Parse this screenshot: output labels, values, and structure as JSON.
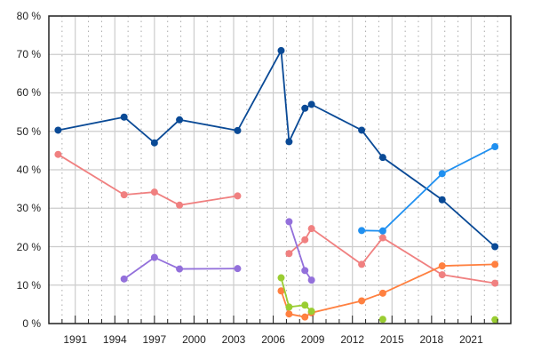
{
  "chart_data": {
    "type": "line",
    "title": "",
    "xlabel": "",
    "ylabel": "",
    "xlim": [
      1989,
      2024
    ],
    "ylim": [
      0,
      80
    ],
    "x_ticks": [
      1991,
      1994,
      1997,
      2000,
      2003,
      2006,
      2009,
      2012,
      2015,
      2018,
      2021
    ],
    "x_tick_labels": [
      "1991",
      "1994",
      "1997",
      "2000",
      "2003",
      "2006",
      "2009",
      "2012",
      "2015",
      "2018",
      "2021"
    ],
    "y_ticks": [
      0,
      10,
      20,
      30,
      40,
      50,
      60,
      70,
      80
    ],
    "y_tick_labels": [
      "0 %",
      "10 %",
      "20 %",
      "30 %",
      "40 %",
      "50 %",
      "60 %",
      "70 %",
      "80 %"
    ],
    "grid": true,
    "legend": "none",
    "series": [
      {
        "color": "#0a4a96",
        "segments": [
          [
            [
              1989.7,
              50.3
            ],
            [
              1994.7,
              53.7
            ],
            [
              1997.0,
              47.0
            ],
            [
              1998.9,
              53.0
            ],
            [
              2003.3,
              50.2
            ],
            [
              2006.6,
              71.0
            ],
            [
              2007.2,
              47.3
            ],
            [
              2008.4,
              56.0
            ],
            [
              2008.9,
              57.0
            ],
            [
              2012.7,
              50.3
            ],
            [
              2014.3,
              43.2
            ],
            [
              2018.8,
              32.2
            ],
            [
              2022.8,
              20.0
            ]
          ]
        ]
      },
      {
        "color": "#f08080",
        "segments": [
          [
            [
              1989.7,
              44.0
            ],
            [
              1994.7,
              33.5
            ],
            [
              1997.0,
              34.2
            ],
            [
              1998.9,
              30.8
            ],
            [
              2003.3,
              33.2
            ]
          ],
          [
            [
              2007.2,
              18.2
            ],
            [
              2008.4,
              21.8
            ],
            [
              2008.9,
              24.7
            ],
            [
              2012.7,
              15.4
            ],
            [
              2014.3,
              22.3
            ],
            [
              2018.8,
              12.7
            ],
            [
              2022.8,
              10.5
            ]
          ]
        ]
      },
      {
        "color": "#9370db",
        "segments": [
          [
            [
              1994.7,
              11.6
            ],
            [
              1997.0,
              17.2
            ],
            [
              1998.9,
              14.2
            ],
            [
              2003.3,
              14.3
            ]
          ],
          [
            [
              2007.2,
              26.5
            ],
            [
              2008.4,
              13.8
            ],
            [
              2008.9,
              11.3
            ]
          ]
        ]
      },
      {
        "color": "#2090f0",
        "segments": [
          [
            [
              2012.7,
              24.2
            ],
            [
              2014.3,
              24.1
            ],
            [
              2018.8,
              39.0
            ],
            [
              2022.8,
              46.0
            ]
          ]
        ]
      },
      {
        "color": "#ff8040",
        "segments": [
          [
            [
              2006.6,
              8.5
            ],
            [
              2007.2,
              2.5
            ],
            [
              2008.4,
              1.7
            ],
            [
              2008.9,
              2.8
            ],
            [
              2012.7,
              5.9
            ],
            [
              2014.3,
              7.9
            ],
            [
              2018.8,
              15.0
            ],
            [
              2022.8,
              15.4
            ]
          ]
        ]
      },
      {
        "color": "#9acd32",
        "segments": [
          [
            [
              2006.6,
              11.9
            ],
            [
              2007.2,
              4.3
            ],
            [
              2008.4,
              4.8
            ],
            [
              2008.9,
              3.2
            ]
          ],
          [
            [
              2014.3,
              1.1
            ]
          ],
          [
            [
              2022.8,
              1.0
            ]
          ]
        ]
      }
    ]
  }
}
